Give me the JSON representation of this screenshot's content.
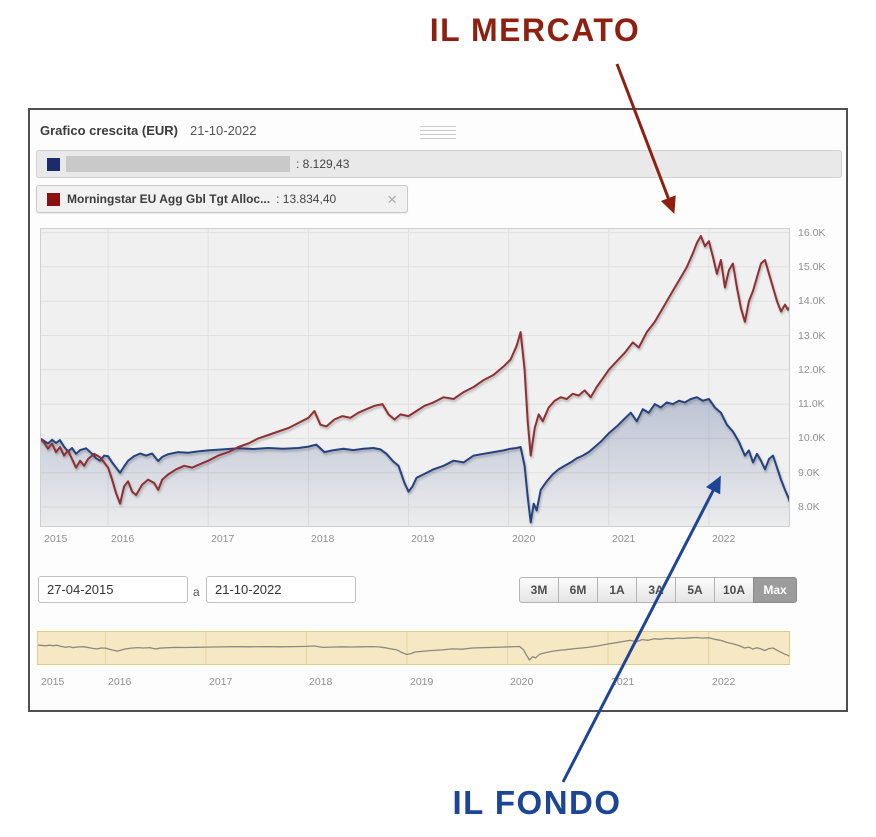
{
  "annotations": {
    "market_label": "IL MERCATO",
    "fund_label": "IL FONDO",
    "market_color": "#8e2012",
    "fund_color": "#1d4596"
  },
  "header": {
    "title": "Grafico crescita (EUR)",
    "date": "21-10-2022"
  },
  "legend": [
    {
      "name": "",
      "redacted": true,
      "value": ": 8.129,43",
      "color": "#1b2c6b"
    },
    {
      "name": "Morningstar EU Agg Gbl Tgt Alloc...",
      "value": ": 13.834,40",
      "color": "#8b1111",
      "close_icon": "×"
    }
  ],
  "controls": {
    "date_from": "27-04-2015",
    "separator": "a",
    "date_to": "21-10-2022",
    "range_buttons": [
      "3M",
      "6M",
      "1A",
      "3A",
      "5A",
      "10A",
      "Max"
    ],
    "active_range": "Max"
  },
  "chart_data": {
    "type": "line",
    "title": "Grafico crescita (EUR)",
    "x_domain": [
      2015.32,
      2022.81
    ],
    "ylim": [
      7400,
      16150
    ],
    "style": {
      "plot_bg": "#f0f0f0",
      "grid_color": "#e0e0e0",
      "border_color": "#cfcfcf"
    },
    "y_ticks": [
      {
        "value": 8000,
        "label": "8.0K"
      },
      {
        "value": 9000,
        "label": "9.0K"
      },
      {
        "value": 10000,
        "label": "10.0K"
      },
      {
        "value": 11000,
        "label": "11.0K"
      },
      {
        "value": 12000,
        "label": "12.0K"
      },
      {
        "value": 13000,
        "label": "13.0K"
      },
      {
        "value": 14000,
        "label": "14.0K"
      },
      {
        "value": 15000,
        "label": "15.0K"
      },
      {
        "value": 16000,
        "label": "16.0K"
      }
    ],
    "x_ticks": [
      {
        "year": 2015,
        "label": "2015",
        "grid": false
      },
      {
        "year": 2016,
        "label": "2016",
        "grid": true
      },
      {
        "year": 2017,
        "label": "2017",
        "grid": true
      },
      {
        "year": 2018,
        "label": "2018",
        "grid": true
      },
      {
        "year": 2019,
        "label": "2019",
        "grid": true
      },
      {
        "year": 2020,
        "label": "2020",
        "grid": true
      },
      {
        "year": 2021,
        "label": "2021",
        "grid": true
      },
      {
        "year": 2022,
        "label": "2022",
        "grid": true
      }
    ],
    "series": [
      {
        "name": "fund",
        "color": "#26417f",
        "area": true,
        "final_value": 8129.43,
        "points": [
          [
            2015.32,
            10000
          ],
          [
            2015.36,
            9930
          ],
          [
            2015.4,
            9850
          ],
          [
            2015.44,
            9960
          ],
          [
            2015.48,
            9870
          ],
          [
            2015.52,
            9950
          ],
          [
            2015.56,
            9760
          ],
          [
            2015.6,
            9620
          ],
          [
            2015.64,
            9720
          ],
          [
            2015.68,
            9550
          ],
          [
            2015.72,
            9660
          ],
          [
            2015.78,
            9710
          ],
          [
            2015.84,
            9550
          ],
          [
            2015.88,
            9420
          ],
          [
            2015.92,
            9350
          ],
          [
            2015.96,
            9500
          ],
          [
            2016.0,
            9480
          ],
          [
            2016.04,
            9300
          ],
          [
            2016.08,
            9150
          ],
          [
            2016.12,
            9000
          ],
          [
            2016.16,
            9180
          ],
          [
            2016.2,
            9350
          ],
          [
            2016.26,
            9480
          ],
          [
            2016.32,
            9560
          ],
          [
            2016.38,
            9500
          ],
          [
            2016.44,
            9560
          ],
          [
            2016.5,
            9340
          ],
          [
            2016.54,
            9460
          ],
          [
            2016.6,
            9540
          ],
          [
            2016.7,
            9600
          ],
          [
            2016.8,
            9580
          ],
          [
            2016.9,
            9620
          ],
          [
            2017.0,
            9650
          ],
          [
            2017.15,
            9680
          ],
          [
            2017.3,
            9710
          ],
          [
            2017.45,
            9690
          ],
          [
            2017.6,
            9720
          ],
          [
            2017.75,
            9700
          ],
          [
            2017.9,
            9720
          ],
          [
            2018.0,
            9760
          ],
          [
            2018.08,
            9820
          ],
          [
            2018.16,
            9600
          ],
          [
            2018.24,
            9650
          ],
          [
            2018.35,
            9700
          ],
          [
            2018.45,
            9660
          ],
          [
            2018.55,
            9700
          ],
          [
            2018.65,
            9720
          ],
          [
            2018.72,
            9680
          ],
          [
            2018.78,
            9550
          ],
          [
            2018.84,
            9350
          ],
          [
            2018.9,
            9200
          ],
          [
            2018.96,
            8700
          ],
          [
            2019.0,
            8450
          ],
          [
            2019.04,
            8600
          ],
          [
            2019.08,
            8850
          ],
          [
            2019.15,
            8950
          ],
          [
            2019.25,
            9100
          ],
          [
            2019.35,
            9200
          ],
          [
            2019.45,
            9350
          ],
          [
            2019.55,
            9300
          ],
          [
            2019.65,
            9500
          ],
          [
            2019.75,
            9550
          ],
          [
            2019.85,
            9600
          ],
          [
            2019.95,
            9650
          ],
          [
            2020.02,
            9700
          ],
          [
            2020.08,
            9720
          ],
          [
            2020.12,
            9750
          ],
          [
            2020.16,
            9200
          ],
          [
            2020.19,
            8300
          ],
          [
            2020.22,
            7550
          ],
          [
            2020.25,
            8100
          ],
          [
            2020.28,
            7900
          ],
          [
            2020.32,
            8500
          ],
          [
            2020.38,
            8750
          ],
          [
            2020.44,
            8950
          ],
          [
            2020.5,
            9100
          ],
          [
            2020.56,
            9200
          ],
          [
            2020.62,
            9300
          ],
          [
            2020.68,
            9420
          ],
          [
            2020.74,
            9500
          ],
          [
            2020.8,
            9600
          ],
          [
            2020.86,
            9750
          ],
          [
            2020.92,
            9900
          ],
          [
            2021.0,
            10150
          ],
          [
            2021.08,
            10350
          ],
          [
            2021.15,
            10550
          ],
          [
            2021.22,
            10750
          ],
          [
            2021.28,
            10500
          ],
          [
            2021.34,
            10850
          ],
          [
            2021.4,
            10750
          ],
          [
            2021.46,
            11000
          ],
          [
            2021.52,
            10900
          ],
          [
            2021.58,
            11050
          ],
          [
            2021.64,
            11000
          ],
          [
            2021.7,
            11100
          ],
          [
            2021.76,
            11050
          ],
          [
            2021.82,
            11150
          ],
          [
            2021.88,
            11200
          ],
          [
            2021.94,
            11100
          ],
          [
            2022.0,
            11150
          ],
          [
            2022.06,
            10900
          ],
          [
            2022.12,
            10750
          ],
          [
            2022.18,
            10400
          ],
          [
            2022.24,
            10200
          ],
          [
            2022.3,
            9900
          ],
          [
            2022.36,
            9500
          ],
          [
            2022.4,
            9650
          ],
          [
            2022.44,
            9300
          ],
          [
            2022.48,
            9550
          ],
          [
            2022.52,
            9350
          ],
          [
            2022.56,
            9100
          ],
          [
            2022.6,
            9400
          ],
          [
            2022.64,
            9500
          ],
          [
            2022.68,
            9150
          ],
          [
            2022.72,
            8800
          ],
          [
            2022.76,
            8500
          ],
          [
            2022.79,
            8300
          ],
          [
            2022.81,
            8129
          ]
        ]
      },
      {
        "name": "Morningstar EU Agg Gbl Tgt Alloc...",
        "color": "#8e2f33",
        "area": false,
        "final_value": 13834.4,
        "points": [
          [
            2015.32,
            10000
          ],
          [
            2015.36,
            9880
          ],
          [
            2015.4,
            9700
          ],
          [
            2015.44,
            9850
          ],
          [
            2015.48,
            9600
          ],
          [
            2015.52,
            9750
          ],
          [
            2015.56,
            9500
          ],
          [
            2015.6,
            9650
          ],
          [
            2015.64,
            9400
          ],
          [
            2015.68,
            9150
          ],
          [
            2015.72,
            9350
          ],
          [
            2015.76,
            9200
          ],
          [
            2015.8,
            9400
          ],
          [
            2015.86,
            9550
          ],
          [
            2015.92,
            9450
          ],
          [
            2015.96,
            9300
          ],
          [
            2016.0,
            9150
          ],
          [
            2016.04,
            8800
          ],
          [
            2016.08,
            8400
          ],
          [
            2016.12,
            8100
          ],
          [
            2016.16,
            8600
          ],
          [
            2016.2,
            8750
          ],
          [
            2016.24,
            8450
          ],
          [
            2016.28,
            8350
          ],
          [
            2016.34,
            8650
          ],
          [
            2016.4,
            8800
          ],
          [
            2016.46,
            8700
          ],
          [
            2016.5,
            8500
          ],
          [
            2016.54,
            8800
          ],
          [
            2016.6,
            8950
          ],
          [
            2016.68,
            9100
          ],
          [
            2016.76,
            9200
          ],
          [
            2016.84,
            9150
          ],
          [
            2016.92,
            9250
          ],
          [
            2017.0,
            9350
          ],
          [
            2017.1,
            9500
          ],
          [
            2017.2,
            9600
          ],
          [
            2017.3,
            9750
          ],
          [
            2017.4,
            9850
          ],
          [
            2017.5,
            10000
          ],
          [
            2017.6,
            10100
          ],
          [
            2017.7,
            10200
          ],
          [
            2017.8,
            10300
          ],
          [
            2017.9,
            10450
          ],
          [
            2018.0,
            10600
          ],
          [
            2018.06,
            10800
          ],
          [
            2018.12,
            10400
          ],
          [
            2018.18,
            10350
          ],
          [
            2018.26,
            10550
          ],
          [
            2018.34,
            10650
          ],
          [
            2018.42,
            10600
          ],
          [
            2018.5,
            10750
          ],
          [
            2018.58,
            10850
          ],
          [
            2018.66,
            10950
          ],
          [
            2018.74,
            11000
          ],
          [
            2018.8,
            10700
          ],
          [
            2018.86,
            10550
          ],
          [
            2018.92,
            10700
          ],
          [
            2019.0,
            10650
          ],
          [
            2019.08,
            10800
          ],
          [
            2019.16,
            10950
          ],
          [
            2019.25,
            11050
          ],
          [
            2019.35,
            11200
          ],
          [
            2019.45,
            11150
          ],
          [
            2019.55,
            11350
          ],
          [
            2019.65,
            11500
          ],
          [
            2019.75,
            11700
          ],
          [
            2019.85,
            11850
          ],
          [
            2019.95,
            12100
          ],
          [
            2020.02,
            12300
          ],
          [
            2020.08,
            12700
          ],
          [
            2020.12,
            13100
          ],
          [
            2020.16,
            12000
          ],
          [
            2020.19,
            10500
          ],
          [
            2020.22,
            9500
          ],
          [
            2020.26,
            10300
          ],
          [
            2020.3,
            10700
          ],
          [
            2020.34,
            10500
          ],
          [
            2020.4,
            10900
          ],
          [
            2020.46,
            11100
          ],
          [
            2020.52,
            11200
          ],
          [
            2020.58,
            11150
          ],
          [
            2020.64,
            11300
          ],
          [
            2020.7,
            11250
          ],
          [
            2020.76,
            11400
          ],
          [
            2020.82,
            11200
          ],
          [
            2020.88,
            11500
          ],
          [
            2020.94,
            11750
          ],
          [
            2021.0,
            12000
          ],
          [
            2021.08,
            12250
          ],
          [
            2021.16,
            12500
          ],
          [
            2021.24,
            12800
          ],
          [
            2021.3,
            12650
          ],
          [
            2021.38,
            13100
          ],
          [
            2021.46,
            13400
          ],
          [
            2021.54,
            13800
          ],
          [
            2021.6,
            14100
          ],
          [
            2021.66,
            14400
          ],
          [
            2021.72,
            14700
          ],
          [
            2021.78,
            15000
          ],
          [
            2021.84,
            15400
          ],
          [
            2021.88,
            15700
          ],
          [
            2021.92,
            15900
          ],
          [
            2021.96,
            15600
          ],
          [
            2022.0,
            15750
          ],
          [
            2022.04,
            15300
          ],
          [
            2022.08,
            14800
          ],
          [
            2022.12,
            15200
          ],
          [
            2022.16,
            14400
          ],
          [
            2022.2,
            14900
          ],
          [
            2022.24,
            15100
          ],
          [
            2022.28,
            14400
          ],
          [
            2022.32,
            13800
          ],
          [
            2022.36,
            13400
          ],
          [
            2022.4,
            14000
          ],
          [
            2022.44,
            14300
          ],
          [
            2022.48,
            14700
          ],
          [
            2022.52,
            15100
          ],
          [
            2022.56,
            15200
          ],
          [
            2022.6,
            14800
          ],
          [
            2022.64,
            14400
          ],
          [
            2022.68,
            14000
          ],
          [
            2022.72,
            13700
          ],
          [
            2022.76,
            13900
          ],
          [
            2022.79,
            13750
          ],
          [
            2022.81,
            13834
          ]
        ]
      }
    ],
    "navigator": {
      "shows_series": "fund",
      "bg_color": "#f6e8c3",
      "border_color": "#e2c98e",
      "grid_color": "#e6d3a3",
      "line_color": "#8a8a82"
    }
  }
}
